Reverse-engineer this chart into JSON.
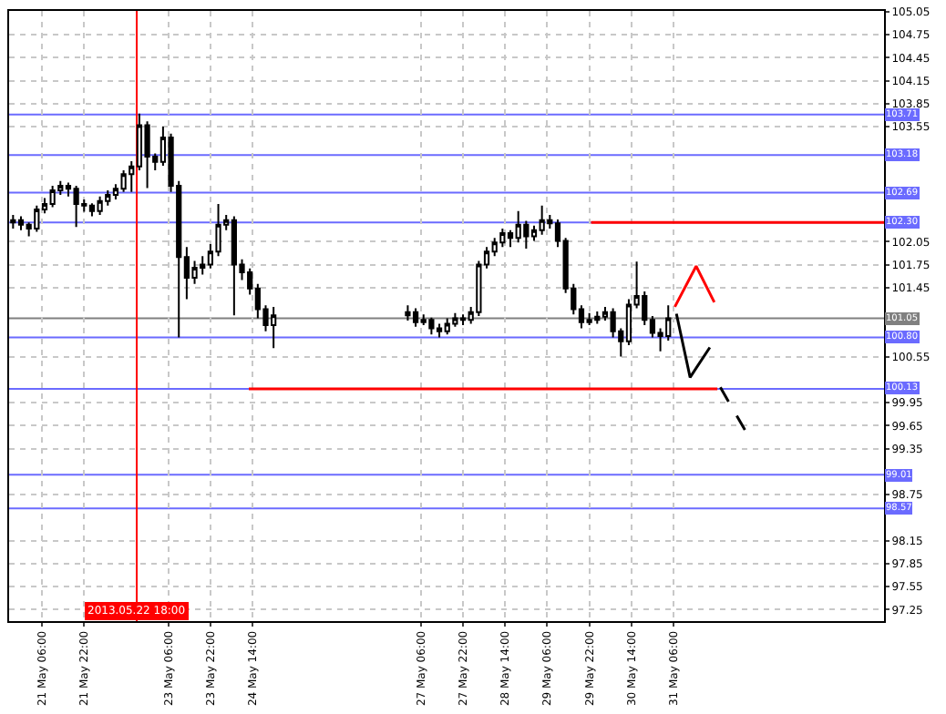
{
  "chart_data": {
    "type": "candlestick",
    "series": [
      {
        "color": "#000000",
        "x": [
          "2013-05-20T19:00",
          "2013-05-20T22:00",
          "2013-05-21T01:00",
          "2013-05-21T04:00",
          "2013-05-21T07:00",
          "2013-05-21T10:00",
          "2013-05-21T13:00",
          "2013-05-21T16:00",
          "2013-05-21T19:00",
          "2013-05-21T22:00",
          "2013-05-22T01:00",
          "2013-05-22T04:00",
          "2013-05-22T07:00",
          "2013-05-22T10:00",
          "2013-05-22T13:00",
          "2013-05-22T16:00",
          "2013-05-22T19:00",
          "2013-05-22T22:00",
          "2013-05-23T01:00",
          "2013-05-23T04:00",
          "2013-05-23T07:00",
          "2013-05-23T10:00",
          "2013-05-23T13:00",
          "2013-05-23T16:00",
          "2013-05-23T19:00",
          "2013-05-23T22:00",
          "2013-05-24T01:00",
          "2013-05-24T04:00",
          "2013-05-24T07:00",
          "2013-05-24T10:00",
          "2013-05-24T13:00",
          "2013-05-24T16:00",
          "2013-05-24T19:00",
          "2013-05-24T22:00",
          "2013-05-27T01:00",
          "2013-05-27T04:00",
          "2013-05-27T07:00",
          "2013-05-27T10:00",
          "2013-05-27T13:00",
          "2013-05-27T16:00",
          "2013-05-27T19:00",
          "2013-05-27T22:00",
          "2013-05-28T01:00",
          "2013-05-28T04:00",
          "2013-05-28T07:00",
          "2013-05-28T10:00",
          "2013-05-28T13:00",
          "2013-05-28T16:00",
          "2013-05-28T19:00",
          "2013-05-28T22:00",
          "2013-05-29T01:00",
          "2013-05-29T04:00",
          "2013-05-29T07:00",
          "2013-05-29T10:00",
          "2013-05-29T13:00",
          "2013-05-29T16:00",
          "2013-05-29T19:00",
          "2013-05-29T22:00",
          "2013-05-30T01:00",
          "2013-05-30T04:00",
          "2013-05-30T07:00",
          "2013-05-30T10:00",
          "2013-05-30T13:00",
          "2013-05-30T16:00",
          "2013-05-30T19:00",
          "2013-05-30T22:00",
          "2013-05-31T01:00",
          "2013-05-31T04:00"
        ],
        "ohlc": [
          [
            102.3,
            102.4,
            102.22,
            102.33
          ],
          [
            102.33,
            102.38,
            102.2,
            102.27
          ],
          [
            102.27,
            102.3,
            102.12,
            102.22
          ],
          [
            102.22,
            102.52,
            102.18,
            102.47
          ],
          [
            102.47,
            102.62,
            102.42,
            102.54
          ],
          [
            102.54,
            102.78,
            102.5,
            102.72
          ],
          [
            102.72,
            102.84,
            102.66,
            102.78
          ],
          [
            102.78,
            102.82,
            102.64,
            102.74
          ],
          [
            102.74,
            102.78,
            102.24,
            102.54
          ],
          [
            102.54,
            102.6,
            102.44,
            102.52
          ],
          [
            102.52,
            102.55,
            102.38,
            102.45
          ],
          [
            102.45,
            102.64,
            102.4,
            102.58
          ],
          [
            102.58,
            102.72,
            102.52,
            102.66
          ],
          [
            102.66,
            102.8,
            102.6,
            102.74
          ],
          [
            102.74,
            102.98,
            102.7,
            102.93
          ],
          [
            102.93,
            103.1,
            102.7,
            103.03
          ],
          [
            103.03,
            103.72,
            102.98,
            103.57
          ],
          [
            103.57,
            103.62,
            102.75,
            103.16
          ],
          [
            103.16,
            103.2,
            102.98,
            103.09
          ],
          [
            103.09,
            103.55,
            103.04,
            103.41
          ],
          [
            103.41,
            103.46,
            102.7,
            102.78
          ],
          [
            102.78,
            102.84,
            100.8,
            101.85
          ],
          [
            101.85,
            101.98,
            101.3,
            101.58
          ],
          [
            101.58,
            101.8,
            101.5,
            101.71
          ],
          [
            101.71,
            101.86,
            101.62,
            101.75
          ],
          [
            101.75,
            102.02,
            101.7,
            101.92
          ],
          [
            101.92,
            102.54,
            101.86,
            102.27
          ],
          [
            102.27,
            102.4,
            102.2,
            102.33
          ],
          [
            102.33,
            102.38,
            101.09,
            101.75
          ],
          [
            101.75,
            101.82,
            101.55,
            101.65
          ],
          [
            101.65,
            101.7,
            101.36,
            101.44
          ],
          [
            101.44,
            101.5,
            101.05,
            101.17
          ],
          [
            101.17,
            101.22,
            100.88,
            100.96
          ],
          [
            100.96,
            101.2,
            100.66,
            101.09
          ],
          [
            101.09,
            101.22,
            101.02,
            101.13
          ],
          [
            101.13,
            101.18,
            100.94,
            101.0
          ],
          [
            101.0,
            101.1,
            100.96,
            101.03
          ],
          [
            101.03,
            101.06,
            100.84,
            100.92
          ],
          [
            100.92,
            100.98,
            100.8,
            100.88
          ],
          [
            100.88,
            101.05,
            100.84,
            100.98
          ],
          [
            100.98,
            101.12,
            100.94,
            101.05
          ],
          [
            101.05,
            101.1,
            100.96,
            101.03
          ],
          [
            101.03,
            101.2,
            100.98,
            101.13
          ],
          [
            101.13,
            101.8,
            101.08,
            101.75
          ],
          [
            101.75,
            101.98,
            101.7,
            101.92
          ],
          [
            101.92,
            102.1,
            101.86,
            102.04
          ],
          [
            102.04,
            102.22,
            101.98,
            102.16
          ],
          [
            102.16,
            102.2,
            101.98,
            102.1
          ],
          [
            102.1,
            102.45,
            102.04,
            102.27
          ],
          [
            102.27,
            102.32,
            101.96,
            102.12
          ],
          [
            102.12,
            102.26,
            102.06,
            102.2
          ],
          [
            102.2,
            102.52,
            102.14,
            102.33
          ],
          [
            102.33,
            102.4,
            102.22,
            102.29
          ],
          [
            102.29,
            102.34,
            101.98,
            102.06
          ],
          [
            102.06,
            102.1,
            101.38,
            101.44
          ],
          [
            101.44,
            101.5,
            101.1,
            101.17
          ],
          [
            101.17,
            101.22,
            100.92,
            101.0
          ],
          [
            101.0,
            101.12,
            100.96,
            101.03
          ],
          [
            101.03,
            101.14,
            100.98,
            101.07
          ],
          [
            101.07,
            101.2,
            101.02,
            101.13
          ],
          [
            101.13,
            101.18,
            100.8,
            100.88
          ],
          [
            100.88,
            100.92,
            100.55,
            100.75
          ],
          [
            100.75,
            101.3,
            100.7,
            101.23
          ],
          [
            101.23,
            101.79,
            101.18,
            101.34
          ],
          [
            101.34,
            101.4,
            100.96,
            101.03
          ],
          [
            101.03,
            101.08,
            100.8,
            100.86
          ],
          [
            100.86,
            100.92,
            100.62,
            100.82
          ],
          [
            100.82,
            101.22,
            100.76,
            101.05
          ]
        ]
      },
      {
        "type": "line",
        "color": "#ff0000",
        "x": [
          "2013-05-29T22:40",
          "2013-06-03T14:00"
        ],
        "values": [
          102.3,
          102.3
        ]
      },
      {
        "type": "line",
        "color": "#ff0000",
        "x": [
          "2013-05-24T12:36",
          "2013-05-31T22:40"
        ],
        "values": [
          100.13,
          100.13
        ]
      },
      {
        "type": "line",
        "color": "#ff0000",
        "x": [
          "2013-05-31T06:30",
          "2013-05-31T14:36",
          "2013-05-31T21:30"
        ],
        "values": [
          101.2,
          101.73,
          101.26
        ]
      },
      {
        "type": "line",
        "color": "#000000",
        "x": [
          "2013-05-31T07:06",
          "2013-05-31T12:18",
          "2013-05-31T19:48"
        ],
        "values": [
          101.11,
          100.28,
          100.67
        ]
      },
      {
        "type": "line",
        "color": "#000000",
        "line_style": "dashed",
        "x": [
          "2013-05-31T23:48",
          "2013-06-01T10:12"
        ],
        "values": [
          100.15,
          99.53
        ]
      }
    ],
    "xlim": [
      "2013-05-20T17:30",
      "2013-06-03T14:00"
    ],
    "xticks": [
      {
        "value": "2013-05-21T06:00",
        "label": "21 May 06:00"
      },
      {
        "value": "2013-05-21T22:00",
        "label": "21 May 22:00"
      },
      {
        "value": "2013-05-23T06:00",
        "label": "23 May 06:00"
      },
      {
        "value": "2013-05-23T22:00",
        "label": "23 May 22:00"
      },
      {
        "value": "2013-05-24T14:00",
        "label": "24 May 14:00"
      },
      {
        "value": "2013-05-27T06:00",
        "label": "27 May 06:00"
      },
      {
        "value": "2013-05-27T22:00",
        "label": "27 May 22:00"
      },
      {
        "value": "2013-05-28T14:00",
        "label": "28 May 14:00"
      },
      {
        "value": "2013-05-29T06:00",
        "label": "29 May 06:00"
      },
      {
        "value": "2013-05-29T22:00",
        "label": "29 May 22:00"
      },
      {
        "value": "2013-05-30T14:00",
        "label": "30 May 14:00"
      },
      {
        "value": "2013-05-31T06:00",
        "label": "31 May 06:00"
      }
    ],
    "ylim": [
      97.1,
      105.06
    ],
    "yticks": [
      105.05,
      104.75,
      104.45,
      104.15,
      103.85,
      103.55,
      102.05,
      101.75,
      101.45,
      100.55,
      99.95,
      99.65,
      99.35,
      98.75,
      98.15,
      97.85,
      97.55,
      97.25
    ],
    "ref_lines": [
      {
        "axis": "y",
        "value": 103.71,
        "label": "103.71",
        "color": "#6b6bff"
      },
      {
        "axis": "y",
        "value": 103.18,
        "label": "103.18",
        "color": "#6b6bff"
      },
      {
        "axis": "y",
        "value": 102.69,
        "label": "102.69",
        "color": "#6b6bff"
      },
      {
        "axis": "y",
        "value": 102.3,
        "label": "102.30",
        "color": "#6b6bff"
      },
      {
        "axis": "y",
        "value": 101.05,
        "label": "101.05",
        "color": "#808080"
      },
      {
        "axis": "y",
        "value": 100.8,
        "label": "100.80",
        "color": "#6b6bff"
      },
      {
        "axis": "y",
        "value": 100.13,
        "label": "100.13",
        "color": "#6b6bff"
      },
      {
        "axis": "y",
        "value": 99.01,
        "label": "99.01",
        "color": "#6b6bff"
      },
      {
        "axis": "y",
        "value": 98.57,
        "label": "98.57",
        "color": "#6b6bff"
      },
      {
        "axis": "x",
        "value": "2013-05-22T18:00",
        "label": "2013.05.22 18:00",
        "color": "#ff0000"
      }
    ],
    "grid": true
  }
}
